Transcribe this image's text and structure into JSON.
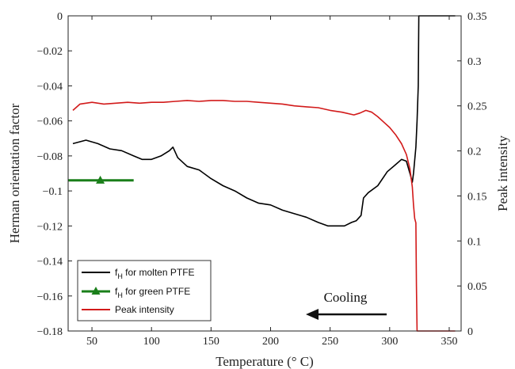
{
  "chart_data": {
    "type": "line",
    "xlabel": "Temperature (° C)",
    "ylabel": "Herman orientation factor",
    "y2label": "Peak intensity",
    "xlim": [
      30,
      360
    ],
    "ylim": [
      -0.18,
      0
    ],
    "y2lim": [
      0,
      0.35
    ],
    "xticks": [
      50,
      100,
      150,
      200,
      250,
      300,
      350
    ],
    "yticks": [
      0,
      -0.02,
      -0.04,
      -0.06,
      -0.08,
      -0.1,
      -0.12,
      -0.14,
      -0.16,
      -0.18
    ],
    "y2ticks": [
      0,
      0.05,
      0.1,
      0.15,
      0.2,
      0.25,
      0.3,
      0.35
    ],
    "grid": false,
    "legend_position": "bottom-left",
    "annotation": {
      "text": "Cooling"
    },
    "series": [
      {
        "name": "for molten PTFE",
        "legend_main": "f",
        "legend_sub": "H",
        "axis": "left",
        "color": "#000000",
        "x": [
          34,
          45,
          55,
          65,
          75,
          85,
          92,
          100,
          108,
          115,
          118,
          122,
          130,
          140,
          150,
          160,
          170,
          180,
          190,
          200,
          210,
          220,
          230,
          240,
          248,
          255,
          262,
          268,
          272,
          276,
          278,
          282,
          290,
          298,
          305,
          310,
          314,
          317,
          319,
          320,
          322,
          323,
          324,
          324.5,
          326,
          355
        ],
        "y": [
          -0.073,
          -0.071,
          -0.073,
          -0.076,
          -0.077,
          -0.08,
          -0.082,
          -0.082,
          -0.08,
          -0.077,
          -0.075,
          -0.081,
          -0.086,
          -0.088,
          -0.093,
          -0.097,
          -0.1,
          -0.104,
          -0.107,
          -0.108,
          -0.111,
          -0.113,
          -0.115,
          -0.118,
          -0.12,
          -0.12,
          -0.12,
          -0.118,
          -0.117,
          -0.114,
          -0.104,
          -0.101,
          -0.097,
          -0.089,
          -0.085,
          -0.082,
          -0.083,
          -0.09,
          -0.095,
          -0.09,
          -0.075,
          -0.06,
          -0.04,
          0,
          0,
          0
        ]
      },
      {
        "name": "for green PTFE",
        "legend_main": "f",
        "legend_sub": "H",
        "axis": "left",
        "color": "#1a7f1a",
        "x": [
          30,
          85
        ],
        "y": [
          -0.094,
          -0.094
        ],
        "marker_x": 57,
        "marker_y": -0.094
      },
      {
        "name": "Peak intensity",
        "axis": "right",
        "color": "#d21a1a",
        "x": [
          34,
          40,
          50,
          60,
          70,
          80,
          90,
          100,
          110,
          120,
          130,
          140,
          150,
          160,
          170,
          180,
          190,
          200,
          210,
          220,
          230,
          240,
          250,
          260,
          270,
          275,
          280,
          285,
          290,
          295,
          300,
          305,
          310,
          314,
          317,
          319,
          320,
          321,
          322,
          322.5,
          323,
          355
        ],
        "y": [
          0.245,
          0.252,
          0.254,
          0.252,
          0.253,
          0.254,
          0.253,
          0.254,
          0.254,
          0.255,
          0.256,
          0.255,
          0.256,
          0.256,
          0.255,
          0.255,
          0.254,
          0.253,
          0.252,
          0.25,
          0.249,
          0.248,
          0.245,
          0.243,
          0.24,
          0.242,
          0.245,
          0.243,
          0.238,
          0.232,
          0.226,
          0.218,
          0.208,
          0.196,
          0.18,
          0.16,
          0.14,
          0.125,
          0.12,
          0.05,
          0,
          0
        ]
      }
    ]
  }
}
